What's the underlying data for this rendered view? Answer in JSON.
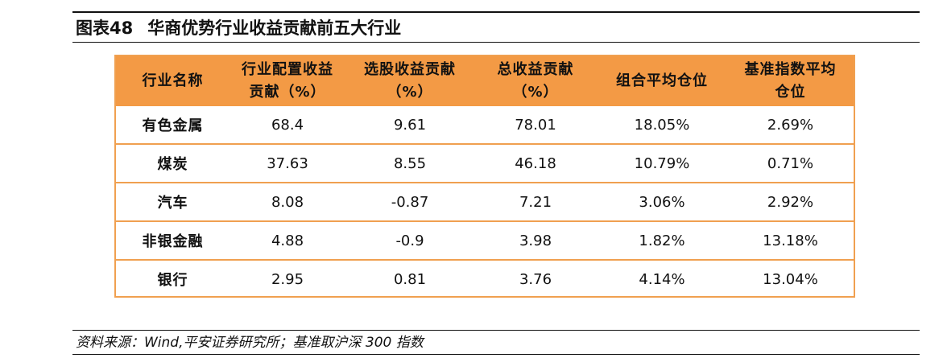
{
  "figure": {
    "number": "图表48",
    "title": "华商优势行业收益贡献前五大行业"
  },
  "table": {
    "headers": [
      [
        "行业名称"
      ],
      [
        "行业配置收益",
        "贡献（%）"
      ],
      [
        "选股收益贡献",
        "（%）"
      ],
      [
        "总收益贡献",
        "（%）"
      ],
      [
        "组合平均仓位"
      ],
      [
        "基准指数平均",
        "仓位"
      ]
    ],
    "rows": [
      [
        "有色金属",
        "68.4",
        "9.61",
        "78.01",
        "18.05%",
        "2.69%"
      ],
      [
        "煤炭",
        "37.63",
        "8.55",
        "46.18",
        "10.79%",
        "0.71%"
      ],
      [
        "汽车",
        "8.08",
        "-0.87",
        "7.21",
        "3.06%",
        "2.92%"
      ],
      [
        "非银金融",
        "4.88",
        "-0.9",
        "3.98",
        "1.82%",
        "13.18%"
      ],
      [
        "银行",
        "2.95",
        "0.81",
        "3.76",
        "4.14%",
        "13.04%"
      ]
    ]
  },
  "source": "资料来源：Wind,平安证券研究所；基准取沪深 300 指数",
  "colors": {
    "header_fill": "#f39a45",
    "row_border": "#f0a050"
  }
}
